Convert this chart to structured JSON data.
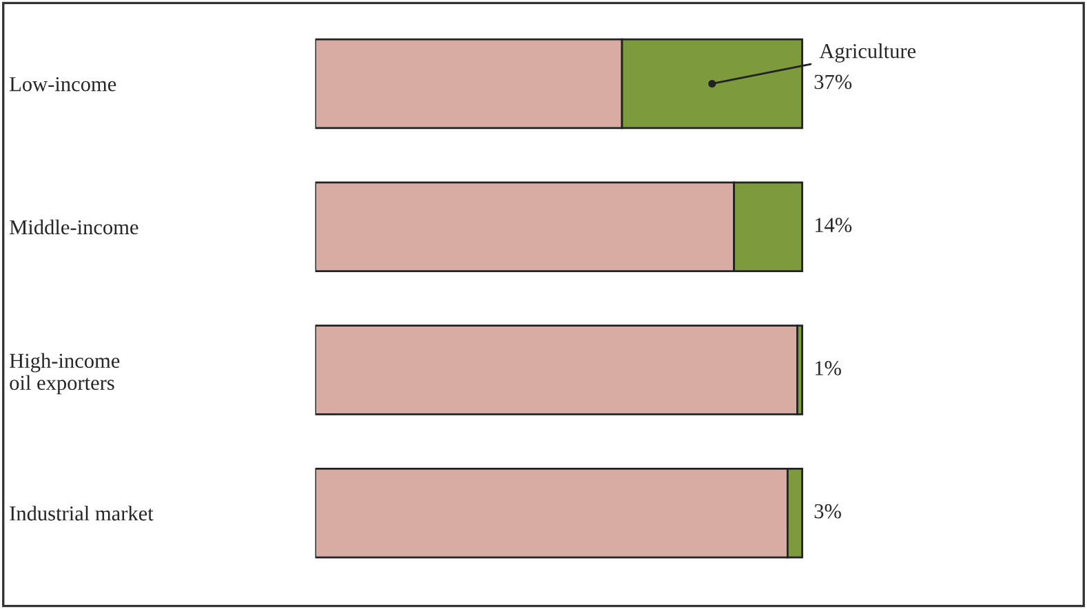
{
  "chart_data": {
    "type": "bar",
    "orientation": "horizontal",
    "stacked": true,
    "categories": [
      "Low-income",
      "Middle-income",
      "High-income\noil exporters",
      "Industrial market"
    ],
    "series": [
      {
        "color": "#d8aca3",
        "values": [
          63,
          86,
          99,
          97
        ]
      },
      {
        "name": "Agriculture",
        "color": "#7d9a3c",
        "values": [
          37,
          14,
          1,
          3
        ],
        "value_labels": [
          "37%",
          "14%",
          "1%",
          "3%"
        ]
      }
    ],
    "tick_labels": "y",
    "grid": false,
    "legend": false
  }
}
